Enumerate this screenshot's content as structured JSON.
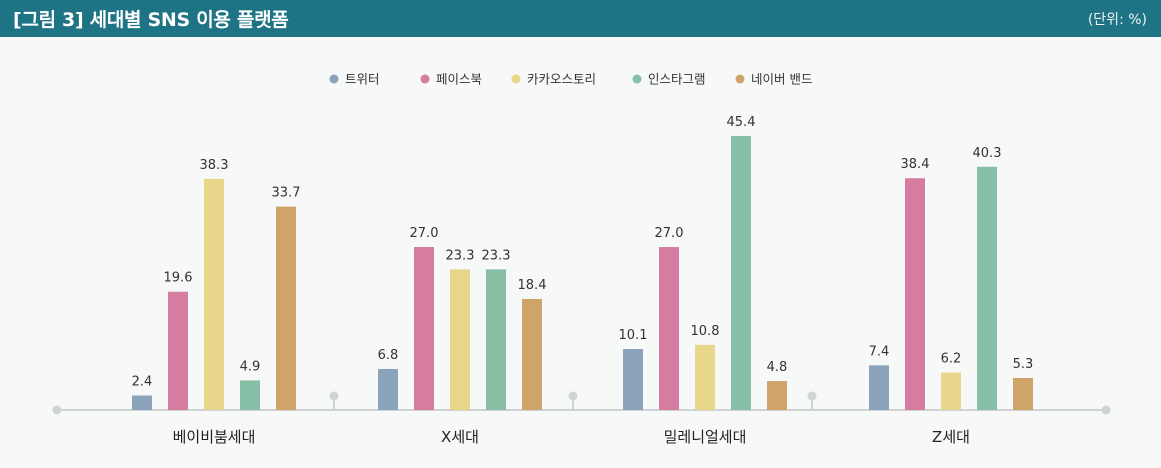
{
  "header": {
    "title": "[그림 3]  세대별 SNS 이용 플랫폼",
    "unit": "(단위: %)"
  },
  "colors": {
    "header_bg": "#1e7384",
    "axis": "#cfd3d6",
    "series": [
      "#8aa2ba",
      "#d57ca0",
      "#e8d68a",
      "#86bfa6",
      "#cfa468"
    ]
  },
  "chart_data": {
    "type": "bar",
    "title": "[그림 3]  세대별 SNS 이용 플랫폼",
    "unit": "(단위: %)",
    "categories": [
      "베이비붐세대",
      "X세대",
      "밀레니얼세대",
      "Z세대"
    ],
    "series": [
      {
        "name": "트위터",
        "values": [
          2.4,
          6.8,
          10.1,
          7.4
        ]
      },
      {
        "name": "페이스북",
        "values": [
          19.6,
          27.0,
          27.0,
          38.4
        ]
      },
      {
        "name": "카카오스토리",
        "values": [
          38.3,
          23.3,
          10.8,
          6.2
        ]
      },
      {
        "name": "인스타그램",
        "values": [
          4.9,
          23.3,
          45.4,
          40.3
        ]
      },
      {
        "name": "네이버 밴드",
        "values": [
          33.7,
          18.4,
          4.8,
          5.3
        ]
      }
    ],
    "ylim": [
      0,
      50
    ],
    "grid": false,
    "legend": "top-center"
  }
}
